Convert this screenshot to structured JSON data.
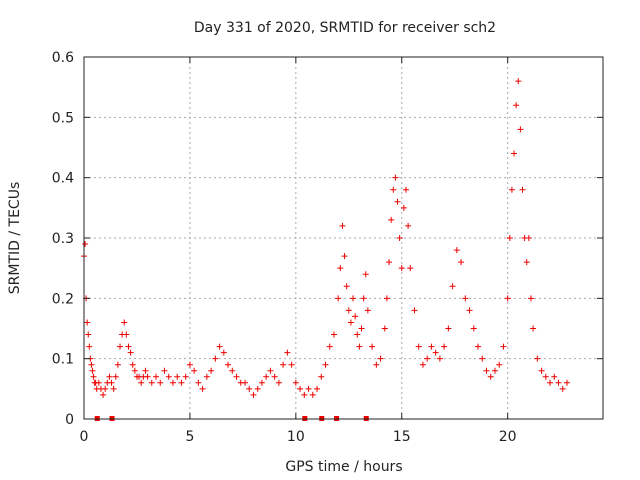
{
  "chart_data": {
    "type": "scatter",
    "title": "Day 331 of 2020, SRMTID for receiver sch2",
    "xlabel": "GPS time / hours",
    "ylabel": "SRMTID / TECUs",
    "xlim": [
      0,
      24.5
    ],
    "ylim": [
      0,
      0.6
    ],
    "xticks": [
      "0",
      "5",
      "10",
      "15",
      "20"
    ],
    "xtick_values": [
      0,
      5,
      10,
      15,
      20
    ],
    "yticks": [
      "0",
      "0.1",
      "0.2",
      "0.3",
      "0.4",
      "0.5",
      "0.6"
    ],
    "ytick_values": [
      0,
      0.1,
      0.2,
      0.3,
      0.4,
      0.5,
      0.6
    ],
    "grid": true,
    "marker": "+",
    "color": "#ee0000",
    "series": [
      {
        "name": "SRMTID",
        "x": [
          0.0,
          0.05,
          0.1,
          0.15,
          0.2,
          0.25,
          0.3,
          0.35,
          0.4,
          0.45,
          0.5,
          0.55,
          0.6,
          0.7,
          0.8,
          0.9,
          1.0,
          1.1,
          1.2,
          1.3,
          1.4,
          1.5,
          1.6,
          1.7,
          1.8,
          1.9,
          2.0,
          2.1,
          2.2,
          2.3,
          2.4,
          2.5,
          2.6,
          2.7,
          2.8,
          2.9,
          3.0,
          3.2,
          3.4,
          3.6,
          3.8,
          4.0,
          4.2,
          4.4,
          4.6,
          4.8,
          5.0,
          5.2,
          5.4,
          5.6,
          5.8,
          6.0,
          6.2,
          6.4,
          6.6,
          6.8,
          7.0,
          7.2,
          7.4,
          7.6,
          7.8,
          8.0,
          8.2,
          8.4,
          8.6,
          8.8,
          9.0,
          9.2,
          9.4,
          9.6,
          9.8,
          10.0,
          10.2,
          10.4,
          10.6,
          10.8,
          11.0,
          11.2,
          11.4,
          11.6,
          11.8,
          12.0,
          12.1,
          12.2,
          12.3,
          12.4,
          12.5,
          12.6,
          12.7,
          12.8,
          12.9,
          13.0,
          13.1,
          13.2,
          13.3,
          13.4,
          13.6,
          13.8,
          14.0,
          14.2,
          14.3,
          14.4,
          14.5,
          14.6,
          14.7,
          14.8,
          14.9,
          15.0,
          15.1,
          15.2,
          15.3,
          15.4,
          15.6,
          15.8,
          16.0,
          16.2,
          16.4,
          16.6,
          16.8,
          17.0,
          17.2,
          17.4,
          17.6,
          17.8,
          18.0,
          18.2,
          18.4,
          18.6,
          18.8,
          19.0,
          19.2,
          19.4,
          19.6,
          19.8,
          20.0,
          20.1,
          20.2,
          20.3,
          20.4,
          20.5,
          20.6,
          20.7,
          20.8,
          20.9,
          21.0,
          21.1,
          21.2,
          21.4,
          21.6,
          21.8,
          22.0,
          22.2,
          22.4,
          22.6,
          22.8
        ],
        "y": [
          0.27,
          0.29,
          0.2,
          0.16,
          0.14,
          0.12,
          0.1,
          0.09,
          0.08,
          0.07,
          0.06,
          0.06,
          0.05,
          0.06,
          0.05,
          0.04,
          0.05,
          0.06,
          0.07,
          0.06,
          0.05,
          0.07,
          0.09,
          0.12,
          0.14,
          0.16,
          0.14,
          0.12,
          0.11,
          0.09,
          0.08,
          0.07,
          0.07,
          0.06,
          0.07,
          0.08,
          0.07,
          0.06,
          0.07,
          0.06,
          0.08,
          0.07,
          0.06,
          0.07,
          0.06,
          0.07,
          0.09,
          0.08,
          0.06,
          0.05,
          0.07,
          0.08,
          0.1,
          0.12,
          0.11,
          0.09,
          0.08,
          0.07,
          0.06,
          0.06,
          0.05,
          0.04,
          0.05,
          0.06,
          0.07,
          0.08,
          0.07,
          0.06,
          0.09,
          0.11,
          0.09,
          0.06,
          0.05,
          0.04,
          0.05,
          0.04,
          0.05,
          0.07,
          0.09,
          0.12,
          0.14,
          0.2,
          0.25,
          0.32,
          0.27,
          0.22,
          0.18,
          0.16,
          0.2,
          0.17,
          0.14,
          0.12,
          0.15,
          0.2,
          0.24,
          0.18,
          0.12,
          0.09,
          0.1,
          0.15,
          0.2,
          0.26,
          0.33,
          0.38,
          0.4,
          0.36,
          0.3,
          0.25,
          0.35,
          0.38,
          0.32,
          0.25,
          0.18,
          0.12,
          0.09,
          0.1,
          0.12,
          0.11,
          0.1,
          0.12,
          0.15,
          0.22,
          0.28,
          0.26,
          0.2,
          0.18,
          0.15,
          0.12,
          0.1,
          0.08,
          0.07,
          0.08,
          0.09,
          0.12,
          0.2,
          0.3,
          0.38,
          0.44,
          0.52,
          0.56,
          0.48,
          0.38,
          0.3,
          0.26,
          0.3,
          0.2,
          0.15,
          0.1,
          0.08,
          0.07,
          0.06,
          0.07,
          0.06,
          0.05,
          0.06
        ]
      }
    ],
    "gap_markers_x": [
      0.6,
      1.3,
      10.4,
      11.2,
      11.9,
      13.3
    ]
  }
}
